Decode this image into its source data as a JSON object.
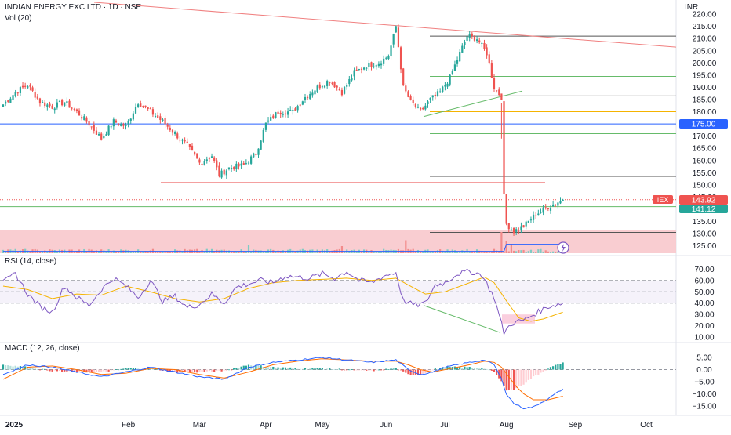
{
  "header": {
    "symbol_line": "INDIAN ENERGY EXC LTD · 1D · NSE",
    "volume_label": "Vol (20)",
    "currency": "INR"
  },
  "badges": {
    "ticker": "IEX",
    "last_price": "143.92",
    "level_green": "141.12",
    "level_blue": "175.00"
  },
  "colors": {
    "up": "#26a69a",
    "down": "#ef5350",
    "rsi": "#7e57c2",
    "rsi_ma": "#f5b300",
    "macd": "#2962ff",
    "signal": "#ff6d00",
    "trend_red": "#f08080",
    "blue_level": "#2962ff"
  },
  "rsi_panel": {
    "label": "RSI (14, close)",
    "ticks": [
      "70.00",
      "60.00",
      "50.00",
      "40.00",
      "30.00",
      "20.00",
      "10.00"
    ]
  },
  "macd_panel": {
    "label": "MACD (12, 26, close)",
    "ticks": [
      "5.00",
      "0.00",
      "−5.00",
      "−10.00",
      "−15.00"
    ]
  },
  "time_axis": [
    "2025",
    "Feb",
    "Mar",
    "Apr",
    "May",
    "Jun",
    "Jul",
    "Aug",
    "Sep",
    "Oct"
  ],
  "chart_data": [
    {
      "type": "candlestick",
      "title": "INDIAN ENERGY EXC LTD · 1D · NSE",
      "ylabel": "INR",
      "ylim": [
        122,
        221
      ],
      "y_ticks": [
        220,
        215,
        210,
        205,
        200,
        195,
        190,
        185,
        180,
        175,
        170,
        165,
        160,
        155,
        150,
        145,
        140,
        135,
        130,
        125
      ],
      "x_labels": [
        "2025",
        "Feb",
        "Mar",
        "Apr",
        "May",
        "Jun",
        "Jul",
        "Aug",
        "Sep",
        "Oct"
      ],
      "anchors": [
        [
          0,
          183
        ],
        [
          5,
          188
        ],
        [
          10,
          191
        ],
        [
          15,
          184
        ],
        [
          20,
          182
        ],
        [
          25,
          184
        ],
        [
          30,
          180
        ],
        [
          35,
          175
        ],
        [
          40,
          169
        ],
        [
          45,
          176
        ],
        [
          50,
          174
        ],
        [
          55,
          184
        ],
        [
          60,
          180
        ],
        [
          65,
          176
        ],
        [
          70,
          171
        ],
        [
          75,
          166
        ],
        [
          80,
          159
        ],
        [
          85,
          162
        ],
        [
          88,
          154
        ],
        [
          92,
          157
        ],
        [
          98,
          158
        ],
        [
          103,
          163
        ],
        [
          107,
          175
        ],
        [
          112,
          180
        ],
        [
          118,
          180
        ],
        [
          123,
          186
        ],
        [
          128,
          190
        ],
        [
          133,
          193
        ],
        [
          138,
          188
        ],
        [
          143,
          196
        ],
        [
          148,
          199
        ],
        [
          153,
          200
        ],
        [
          157,
          203
        ],
        [
          160,
          215
        ],
        [
          163,
          190
        ],
        [
          166,
          184
        ],
        [
          170,
          180
        ],
        [
          174,
          185
        ],
        [
          178,
          188
        ],
        [
          182,
          194
        ],
        [
          186,
          204
        ],
        [
          189,
          211
        ],
        [
          193,
          210
        ],
        [
          197,
          204
        ],
        [
          200,
          190
        ],
        [
          203,
          186
        ],
        [
          204,
          145
        ],
        [
          205,
          134
        ],
        [
          208,
          131
        ],
        [
          212,
          133
        ],
        [
          217,
          138
        ],
        [
          222,
          141
        ],
        [
          228,
          144
        ]
      ],
      "levels": [
        {
          "price": 211,
          "color": "#555555"
        },
        {
          "price": 194.5,
          "color": "#66bb6a"
        },
        {
          "price": 186.5,
          "color": "#555555"
        },
        {
          "price": 180,
          "color": "#f5b300"
        },
        {
          "price": 175,
          "color": "#2962ff"
        },
        {
          "price": 171,
          "color": "#66bb6a"
        },
        {
          "price": 153.5,
          "color": "#555555"
        },
        {
          "price": 151,
          "color": "#f08080"
        },
        {
          "price": 141.1,
          "color": "#66bb6a"
        },
        {
          "price": 130.5,
          "color": "#555555"
        }
      ],
      "last_close": 143.92,
      "vol_spikes": [
        [
          100,
          0.35
        ],
        [
          138,
          0.3
        ],
        [
          164,
          0.55
        ],
        [
          203,
          0.9
        ],
        [
          205,
          0.5
        ],
        [
          207,
          0.4
        ]
      ]
    },
    {
      "type": "line",
      "title": "RSI (14, close)",
      "ylim": [
        8,
        73
      ],
      "y_ticks": [
        70,
        60,
        50,
        40,
        30,
        20,
        10
      ],
      "band": [
        40,
        60
      ],
      "series": [
        {
          "name": "RSI",
          "anchors": [
            [
              0,
              58
            ],
            [
              5,
              66
            ],
            [
              10,
              48
            ],
            [
              15,
              37
            ],
            [
              20,
              32
            ],
            [
              25,
              55
            ],
            [
              30,
              45
            ],
            [
              35,
              38
            ],
            [
              40,
              52
            ],
            [
              45,
              62
            ],
            [
              50,
              55
            ],
            [
              55,
              45
            ],
            [
              60,
              60
            ],
            [
              65,
              42
            ],
            [
              70,
              46
            ],
            [
              75,
              36
            ],
            [
              80,
              39
            ],
            [
              85,
              48
            ],
            [
              90,
              40
            ],
            [
              95,
              54
            ],
            [
              100,
              57
            ],
            [
              105,
              60
            ],
            [
              110,
              58
            ],
            [
              115,
              64
            ],
            [
              120,
              63
            ],
            [
              125,
              62
            ],
            [
              130,
              66
            ],
            [
              135,
              62
            ],
            [
              140,
              68
            ],
            [
              145,
              60
            ],
            [
              150,
              58
            ],
            [
              155,
              64
            ],
            [
              160,
              67
            ],
            [
              163,
              42
            ],
            [
              168,
              38
            ],
            [
              172,
              40
            ],
            [
              176,
              56
            ],
            [
              180,
              58
            ],
            [
              185,
              66
            ],
            [
              190,
              68
            ],
            [
              195,
              65
            ],
            [
              200,
              45
            ],
            [
              204,
              14
            ],
            [
              207,
              22
            ],
            [
              212,
              25
            ],
            [
              217,
              31
            ],
            [
              222,
              37
            ],
            [
              228,
              40
            ]
          ]
        },
        {
          "name": "RSI-based MA",
          "anchors": [
            [
              0,
              55
            ],
            [
              10,
              52
            ],
            [
              20,
              44
            ],
            [
              30,
              48
            ],
            [
              40,
              47
            ],
            [
              50,
              55
            ],
            [
              60,
              50
            ],
            [
              70,
              44
            ],
            [
              80,
              41
            ],
            [
              90,
              44
            ],
            [
              100,
              53
            ],
            [
              110,
              58
            ],
            [
              120,
              60
            ],
            [
              130,
              61
            ],
            [
              140,
              62
            ],
            [
              150,
              60
            ],
            [
              160,
              62
            ],
            [
              165,
              56
            ],
            [
              172,
              48
            ],
            [
              180,
              50
            ],
            [
              190,
              58
            ],
            [
              196,
              63
            ],
            [
              200,
              58
            ],
            [
              205,
              42
            ],
            [
              210,
              27
            ],
            [
              215,
              24
            ],
            [
              220,
              26
            ],
            [
              228,
              32
            ]
          ]
        }
      ]
    },
    {
      "type": "line",
      "title": "MACD (12, 26, close)",
      "ylim": [
        -18,
        7
      ],
      "y_ticks": [
        5,
        0,
        -5,
        -10,
        -15
      ],
      "series": [
        {
          "name": "MACD",
          "anchors": [
            [
              0,
              -2
            ],
            [
              10,
              2
            ],
            [
              20,
              1
            ],
            [
              30,
              -1
            ],
            [
              40,
              -3
            ],
            [
              50,
              -1
            ],
            [
              60,
              1
            ],
            [
              70,
              -1
            ],
            [
              80,
              -3
            ],
            [
              90,
              -4
            ],
            [
              100,
              1
            ],
            [
              110,
              3
            ],
            [
              120,
              4
            ],
            [
              130,
              5
            ],
            [
              140,
              4
            ],
            [
              150,
              3
            ],
            [
              160,
              4
            ],
            [
              165,
              0
            ],
            [
              170,
              -2
            ],
            [
              175,
              -1
            ],
            [
              180,
              1
            ],
            [
              190,
              3
            ],
            [
              196,
              4
            ],
            [
              200,
              2
            ],
            [
              203,
              -4
            ],
            [
              205,
              -10
            ],
            [
              208,
              -14
            ],
            [
              212,
              -16
            ],
            [
              216,
              -15.5
            ],
            [
              222,
              -12
            ],
            [
              228,
              -8
            ]
          ]
        },
        {
          "name": "Signal",
          "anchors": [
            [
              0,
              -4
            ],
            [
              10,
              1
            ],
            [
              20,
              1.5
            ],
            [
              30,
              0
            ],
            [
              40,
              -2
            ],
            [
              50,
              -1.5
            ],
            [
              60,
              0.5
            ],
            [
              70,
              0
            ],
            [
              80,
              -2
            ],
            [
              90,
              -3.5
            ],
            [
              100,
              -1
            ],
            [
              110,
              2
            ],
            [
              120,
              3.5
            ],
            [
              130,
              4.5
            ],
            [
              140,
              4
            ],
            [
              150,
              3.5
            ],
            [
              160,
              3.5
            ],
            [
              165,
              2
            ],
            [
              170,
              0
            ],
            [
              175,
              -1
            ],
            [
              180,
              0
            ],
            [
              190,
              2
            ],
            [
              196,
              3.5
            ],
            [
              200,
              3
            ],
            [
              203,
              1
            ],
            [
              206,
              -3
            ],
            [
              209,
              -7
            ],
            [
              212,
              -10
            ],
            [
              216,
              -12.5
            ],
            [
              222,
              -12.5
            ],
            [
              228,
              -11
            ]
          ]
        }
      ]
    }
  ]
}
